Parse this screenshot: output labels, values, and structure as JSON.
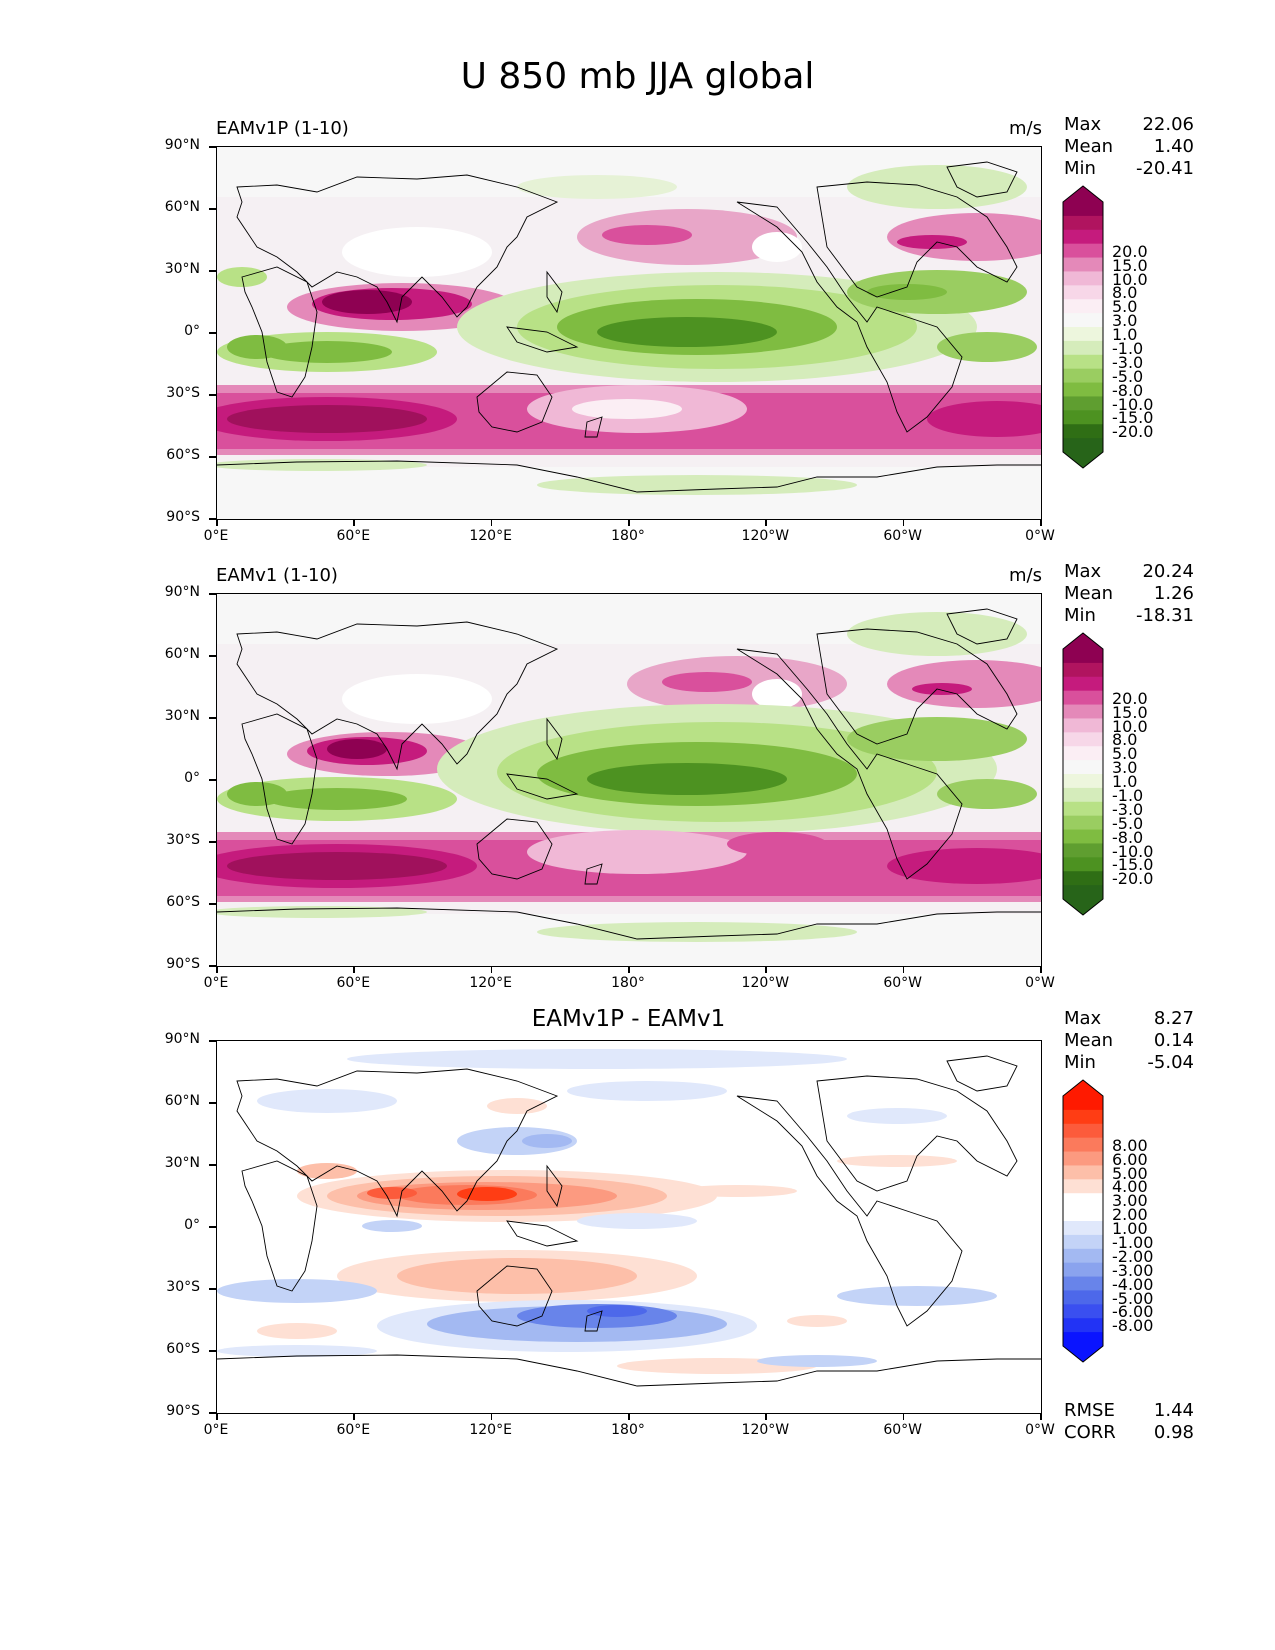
{
  "figure": {
    "title": "U 850 mb JJA global"
  },
  "axes": {
    "y_ticks": [
      "90°N",
      "60°N",
      "30°N",
      "0°",
      "30°S",
      "60°S",
      "90°S"
    ],
    "x_ticks": [
      "0°E",
      "60°E",
      "120°E",
      "180°",
      "120°W",
      "60°W",
      "0°W"
    ]
  },
  "panels": [
    {
      "title_left": "EAMv1P (1-10)",
      "title_center": "",
      "units": "m/s",
      "stats": [
        {
          "label": "Max",
          "value": "22.06"
        },
        {
          "label": "Mean",
          "value": "1.40"
        },
        {
          "label": "Min",
          "value": "-20.41"
        }
      ],
      "colorbar_labels": [
        "20.0",
        "15.0",
        "10.0",
        "8.0",
        "5.0",
        "3.0",
        "1.0",
        "-1.0",
        "-3.0",
        "-5.0",
        "-8.0",
        "-10.0",
        "-15.0",
        "-20.0"
      ],
      "colorbar_colors": [
        "#8e0152",
        "#b0145f",
        "#c51b7d",
        "#d9509c",
        "#e489b9",
        "#f0b8d6",
        "#f7d7e8",
        "#fbeef4",
        "#f7f7f7",
        "#edf6dd",
        "#d5ecbb",
        "#b8e186",
        "#9acd61",
        "#7fbc41",
        "#5f9e30",
        "#4d9221",
        "#2f6e15",
        "#276419"
      ],
      "extra": []
    },
    {
      "title_left": "EAMv1 (1-10)",
      "title_center": "",
      "units": "m/s",
      "stats": [
        {
          "label": "Max",
          "value": "20.24"
        },
        {
          "label": "Mean",
          "value": "1.26"
        },
        {
          "label": "Min",
          "value": "-18.31"
        }
      ],
      "colorbar_labels": [
        "20.0",
        "15.0",
        "10.0",
        "8.0",
        "5.0",
        "3.0",
        "1.0",
        "-1.0",
        "-3.0",
        "-5.0",
        "-8.0",
        "-10.0",
        "-15.0",
        "-20.0"
      ],
      "colorbar_colors": [
        "#8e0152",
        "#b0145f",
        "#c51b7d",
        "#d9509c",
        "#e489b9",
        "#f0b8d6",
        "#f7d7e8",
        "#fbeef4",
        "#f7f7f7",
        "#edf6dd",
        "#d5ecbb",
        "#b8e186",
        "#9acd61",
        "#7fbc41",
        "#5f9e30",
        "#4d9221",
        "#2f6e15",
        "#276419"
      ],
      "extra": []
    },
    {
      "title_left": "",
      "title_center": "EAMv1P - EAMv1",
      "units": "",
      "stats": [
        {
          "label": "Max",
          "value": "8.27"
        },
        {
          "label": "Mean",
          "value": "0.14"
        },
        {
          "label": "Min",
          "value": "-5.04"
        }
      ],
      "colorbar_labels": [
        "8.00",
        "6.00",
        "5.00",
        "4.00",
        "3.00",
        "2.00",
        "1.00",
        "-1.00",
        "-2.00",
        "-3.00",
        "-4.00",
        "-5.00",
        "-6.00",
        "-8.00"
      ],
      "colorbar_colors": [
        "#ff1a00",
        "#ff3d14",
        "#fc5b3b",
        "#fb7a5c",
        "#fc9a80",
        "#fdbfa9",
        "#fee0d4",
        "#ffffff",
        "#ffffff",
        "#e0e8fb",
        "#c3d3f7",
        "#a3b9f2",
        "#8aa3ee",
        "#6884ea",
        "#4d68ea",
        "#3a4ff0",
        "#2233f5",
        "#0a14ff"
      ],
      "extra": [
        {
          "label": "RMSE",
          "value": "1.44"
        },
        {
          "label": "CORR",
          "value": "0.98"
        }
      ]
    }
  ]
}
